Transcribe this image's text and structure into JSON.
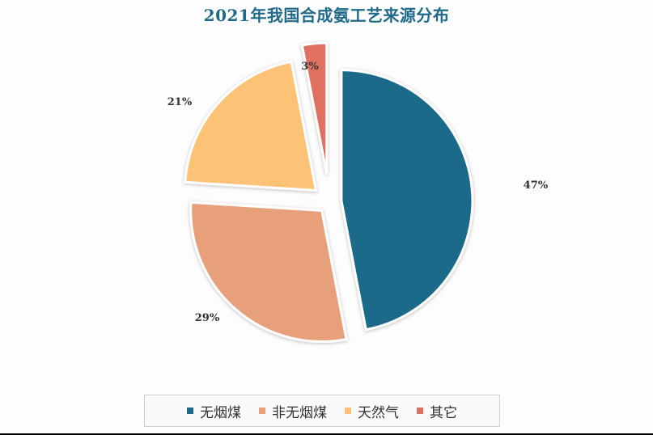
{
  "chart_data": {
    "type": "pie",
    "title": "2021年我国合成氨工艺来源分布",
    "categories": [
      "无烟煤",
      "非无烟煤",
      "天然气",
      "其它"
    ],
    "values": [
      47,
      29,
      21,
      3
    ],
    "value_labels": [
      "47%",
      "29%",
      "21%",
      "3%"
    ],
    "colors": [
      "#1f6a8a",
      "#e8a07a",
      "#fcc276",
      "#e0705e"
    ],
    "exploded": true,
    "legend_position": "bottom"
  }
}
